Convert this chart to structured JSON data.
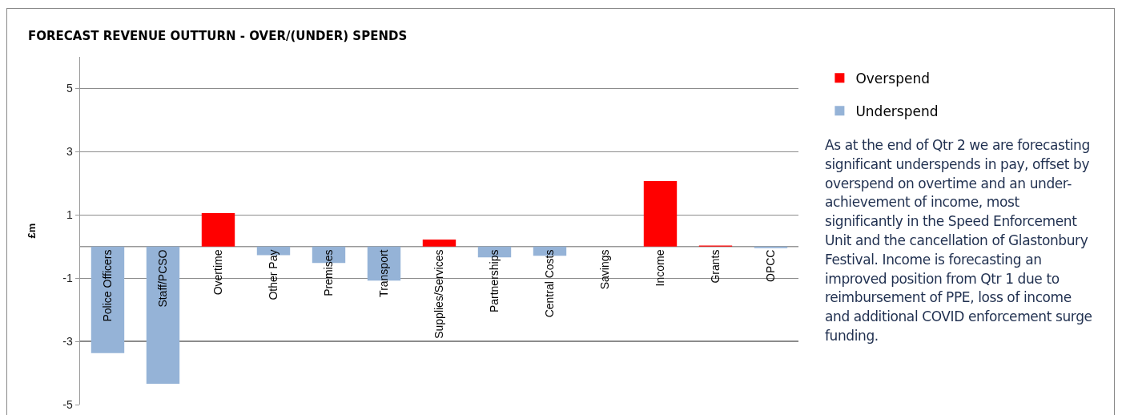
{
  "chart_data": {
    "type": "bar",
    "title": "FORECAST REVENUE OUTTURN - OVER/(UNDER) SPENDS",
    "ylabel": "£m",
    "categories": [
      "Police Officers",
      "Staff/PCSO",
      "Overtime",
      "Other Pay",
      "Premises",
      "Transport",
      "Supplies/Services",
      "Partnerships",
      "Central Costs",
      "Savings",
      "Income",
      "Grants",
      "OPCC"
    ],
    "series": [
      {
        "name": "Overspend",
        "color": "#ff0000",
        "values": [
          null,
          null,
          1.06,
          null,
          null,
          null,
          0.22,
          null,
          null,
          null,
          2.07,
          0.03,
          null
        ]
      },
      {
        "name": "Underspend",
        "color": "#95b3d7",
        "values": [
          -3.37,
          -4.34,
          null,
          -0.27,
          -0.52,
          -1.08,
          null,
          -0.34,
          -0.29,
          null,
          null,
          null,
          -0.05
        ]
      }
    ],
    "ylim": [
      -5,
      6
    ],
    "yticks": [
      5,
      3,
      1,
      -1,
      -3,
      -5
    ],
    "grid": "y",
    "legend": "right",
    "annotations": [
      "As at the end of Qtr 2 we are forecasting significant underspends in pay, offset by overspend on overtime and an under-achievement of income, most significantly in the Speed Enforcement Unit and the cancellation of Glastonbury Festival. Income is forecasting an improved position from Qtr 1 due to reimbursement of PPE, loss of income and additional COVID enforcement surge funding."
    ]
  }
}
